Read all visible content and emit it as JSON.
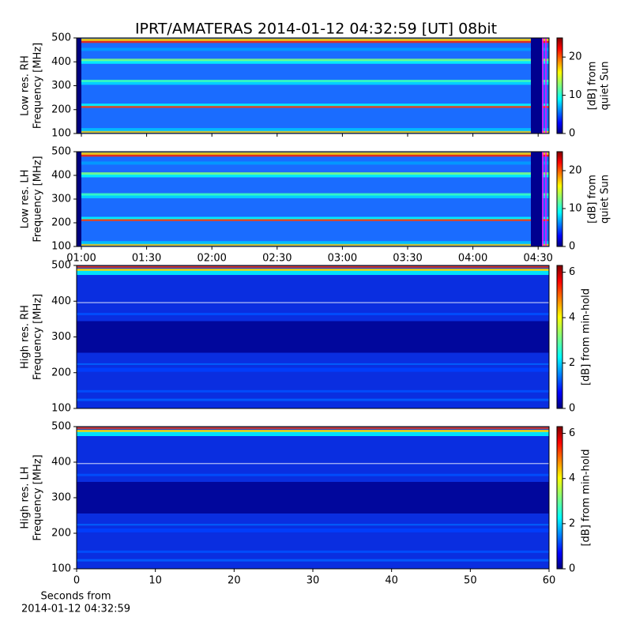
{
  "chart_data": [
    {
      "type": "spectrogram",
      "title": "IPRT/AMATERAS 2014-01-12 04:32:59 [UT]   08bit",
      "ylabel": [
        "Low res. RH",
        "Frequency [MHz]"
      ],
      "ylim": [
        100,
        500
      ],
      "yticks": [
        100,
        200,
        300,
        400,
        500
      ],
      "colorbar_label": [
        "[dB] from",
        "quiet Sun"
      ],
      "clim": [
        0,
        25
      ],
      "cticks": [
        0,
        10,
        20
      ]
    },
    {
      "type": "spectrogram",
      "ylabel": [
        "Low res. LH",
        "Frequency [MHz]"
      ],
      "ylim": [
        100,
        500
      ],
      "yticks": [
        100,
        200,
        300,
        400,
        500
      ],
      "x_time_ticks": [
        "01:00",
        "01:30",
        "02:00",
        "02:30",
        "03:00",
        "03:30",
        "04:00",
        "04:30"
      ],
      "colorbar_label": [
        "[dB] from",
        "quiet Sun"
      ],
      "clim": [
        0,
        25
      ],
      "cticks": [
        0,
        10,
        20
      ]
    },
    {
      "type": "spectrogram",
      "ylabel": [
        "High res. RH",
        "Frequency [MHz]"
      ],
      "ylim": [
        100,
        500
      ],
      "yticks": [
        100,
        200,
        300,
        400,
        500
      ],
      "colorbar_label": [
        "[dB] from min-hold"
      ],
      "clim": [
        0,
        6.3
      ],
      "cticks": [
        0,
        2,
        4,
        6
      ]
    },
    {
      "type": "spectrogram",
      "ylabel": [
        "High res. LH",
        "Frequency [MHz]"
      ],
      "ylim": [
        100,
        500
      ],
      "yticks": [
        100,
        200,
        300,
        400,
        500
      ],
      "xlim": [
        0,
        60
      ],
      "xticks": [
        0,
        10,
        20,
        30,
        40,
        50,
        60
      ],
      "xlabel": [
        "Seconds from",
        "2014-01-12 04:32:59"
      ],
      "colorbar_label": [
        "[dB] from min-hold"
      ],
      "clim": [
        0,
        6.3
      ],
      "cticks": [
        0,
        2,
        4,
        6
      ]
    }
  ]
}
